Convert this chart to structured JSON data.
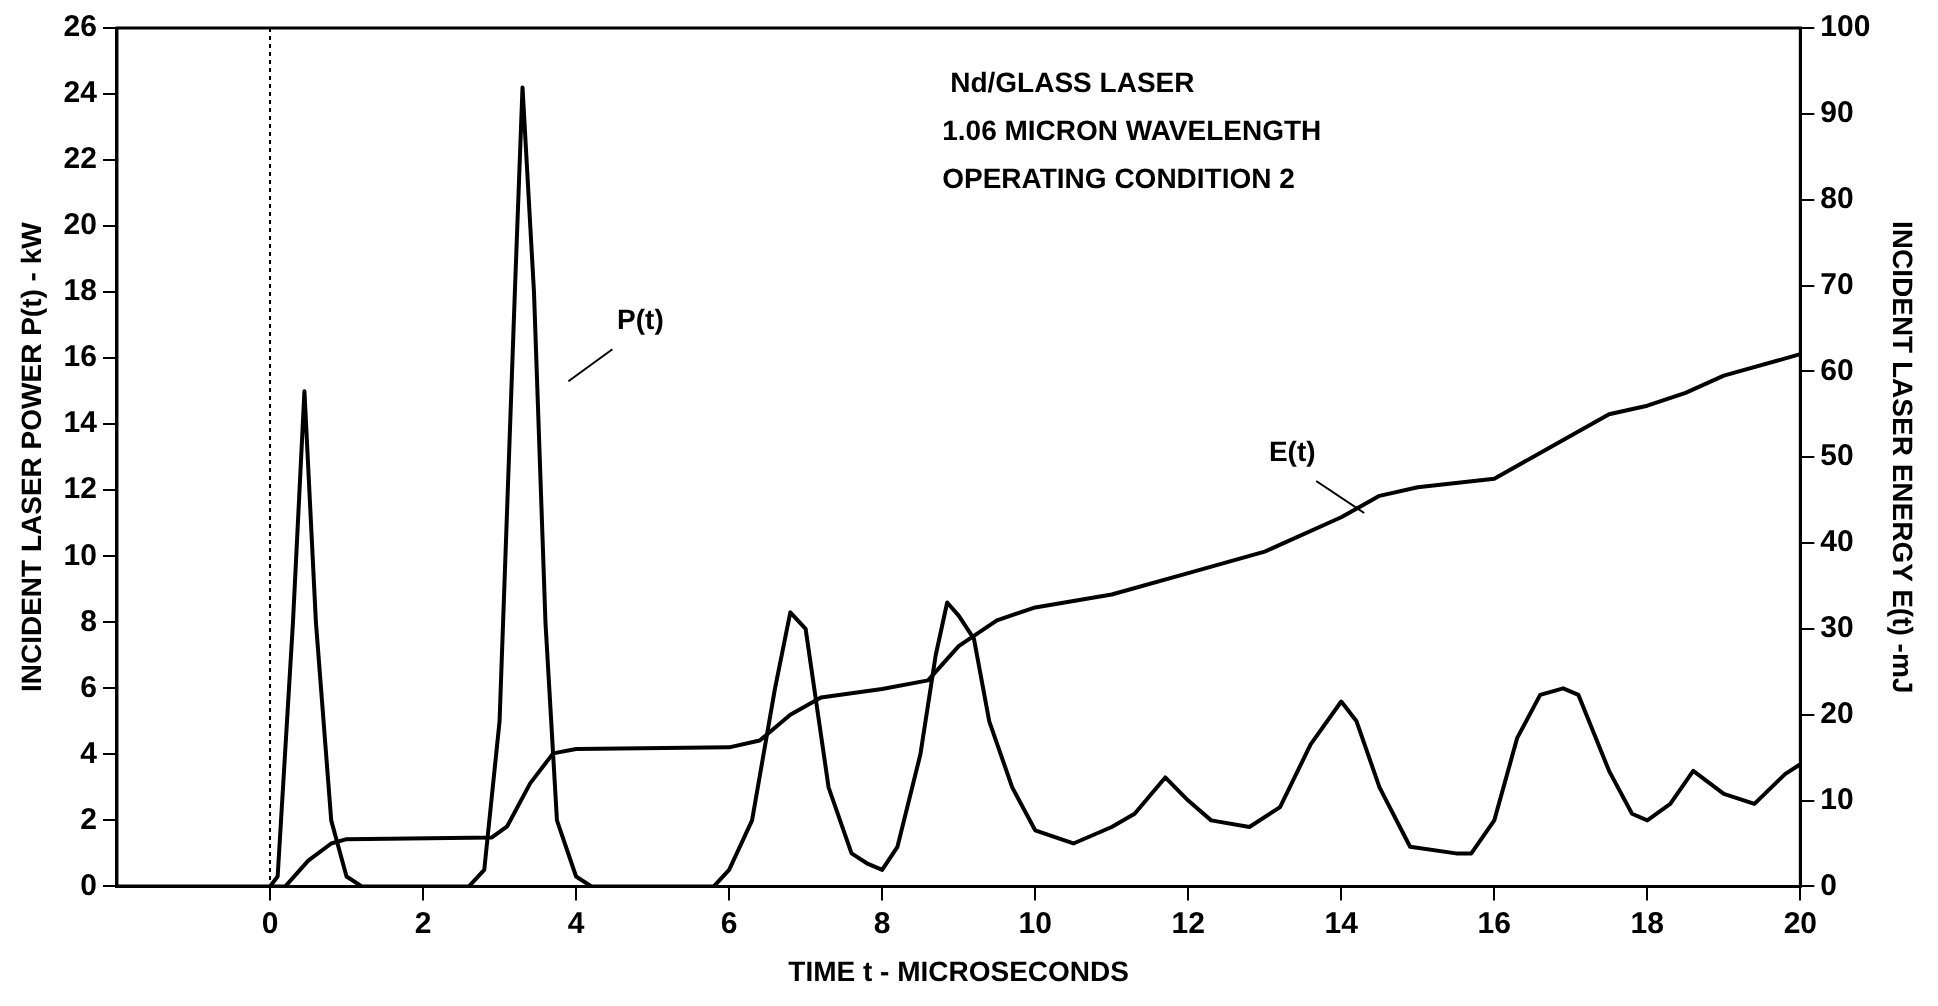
{
  "chart_data": {
    "type": "line",
    "xlabel": "TIME t - MICROSECONDS",
    "ylabel": "INCIDENT LASER POWER P(t) - kW",
    "y2label": "INCIDENT LASER ENERGY E(t) -mJ",
    "annotations": [
      "Nd/GLASS LASER",
      "1.06 MICRON WAVELENGTH",
      "OPERATING CONDITION 2"
    ],
    "xlim": [
      -2,
      20
    ],
    "xticks": [
      0,
      2,
      4,
      6,
      8,
      10,
      12,
      14,
      16,
      18,
      20
    ],
    "ylim": [
      0,
      26
    ],
    "yticks": [
      0,
      2,
      4,
      6,
      8,
      10,
      12,
      14,
      16,
      18,
      20,
      22,
      24,
      26
    ],
    "y2lim": [
      0,
      100
    ],
    "y2ticks": [
      0,
      10,
      20,
      30,
      40,
      50,
      60,
      70,
      80,
      90,
      100
    ],
    "grid": false,
    "legend": false,
    "marker": "none",
    "line_style": "solid",
    "ref_lines": [
      {
        "axis": "x",
        "value": 0,
        "label": null,
        "color": "#000000",
        "line_style": "dotted"
      }
    ],
    "series": [
      {
        "name": "P(t)",
        "color": "#000000",
        "x": [
          -2,
          0,
          0.1,
          0.3,
          0.45,
          0.6,
          0.8,
          1.0,
          1.2,
          2.6,
          2.8,
          3.0,
          3.2,
          3.3,
          3.45,
          3.6,
          3.75,
          4.0,
          4.2,
          5.8,
          6.0,
          6.3,
          6.6,
          6.8,
          7.0,
          7.3,
          7.6,
          7.8,
          8.0,
          8.2,
          8.5,
          8.7,
          8.85,
          9.0,
          9.2,
          9.4,
          9.7,
          10.0,
          10.5,
          11.0,
          11.3,
          11.7,
          12.0,
          12.3,
          12.8,
          13.2,
          13.6,
          14.0,
          14.2,
          14.5,
          14.9,
          15.5,
          15.7,
          16.0,
          16.3,
          16.6,
          16.9,
          17.1,
          17.5,
          17.8,
          18.0,
          18.3,
          18.6,
          19.0,
          19.4,
          19.8,
          20.0
        ],
        "values": [
          0,
          0,
          0.3,
          8,
          15,
          8,
          2,
          0.3,
          0,
          0,
          0.5,
          5,
          18,
          24.2,
          18,
          8,
          2,
          0.3,
          0,
          0,
          0.5,
          2,
          6,
          8.3,
          7.8,
          3,
          1,
          0.7,
          0.5,
          1.2,
          4,
          7,
          8.6,
          8.2,
          7.5,
          5,
          3,
          1.7,
          1.3,
          1.8,
          2.2,
          3.3,
          2.6,
          2,
          1.8,
          2.4,
          4.3,
          5.6,
          5,
          3,
          1.2,
          1,
          1,
          2,
          4.5,
          5.8,
          6,
          5.8,
          3.5,
          2.2,
          2,
          2.5,
          3.5,
          2.8,
          2.5,
          3.4,
          3.7
        ]
      },
      {
        "name": "E(t)",
        "color": "#000000",
        "axis": "y2",
        "x": [
          0,
          0.2,
          0.5,
          0.8,
          1.0,
          2.9,
          3.1,
          3.4,
          3.7,
          4.0,
          6.0,
          6.4,
          6.8,
          7.2,
          8.0,
          8.6,
          9.0,
          9.5,
          10,
          11,
          12,
          13,
          14,
          14.5,
          15,
          16,
          16.5,
          17,
          17.5,
          18,
          18.5,
          19,
          20
        ],
        "values": [
          0,
          0,
          3,
          5,
          5.5,
          5.7,
          7,
          12,
          15.5,
          16,
          16.2,
          17,
          20,
          22,
          23,
          24,
          28,
          31,
          32.5,
          34,
          36.5,
          39,
          43,
          45.5,
          46.5,
          47.5,
          50,
          52.5,
          55,
          56,
          57.5,
          59.5,
          62
        ]
      }
    ]
  }
}
